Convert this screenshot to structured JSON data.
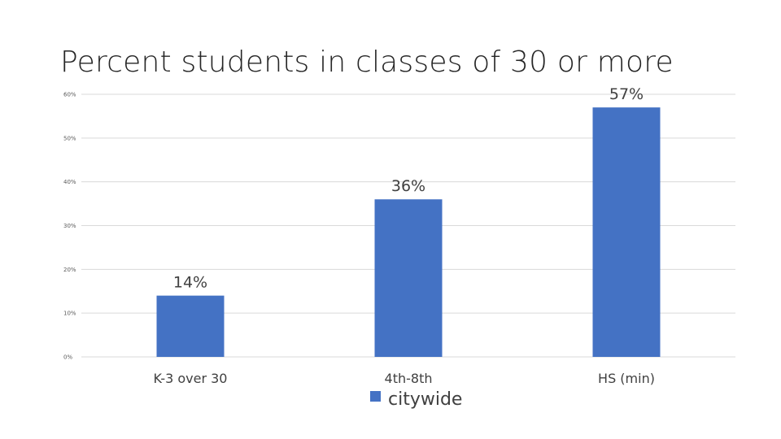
{
  "title": "Percent students in classes of 30 or more",
  "colors": {
    "bar": "#4472c4",
    "grid": "#d9d9d9"
  },
  "chart_data": {
    "type": "bar",
    "categories": [
      "K-3 over 30",
      "4th-8th",
      "HS (min)"
    ],
    "series": [
      {
        "name": "citywide",
        "values": [
          14,
          36,
          57
        ],
        "labels": [
          "14%",
          "36%",
          "57%"
        ]
      }
    ],
    "yticks": [
      "0%",
      "10%",
      "20%",
      "30%",
      "40%",
      "50%",
      "60%"
    ],
    "ylim": [
      0,
      60
    ],
    "grid": true,
    "legend_position": "bottom"
  }
}
